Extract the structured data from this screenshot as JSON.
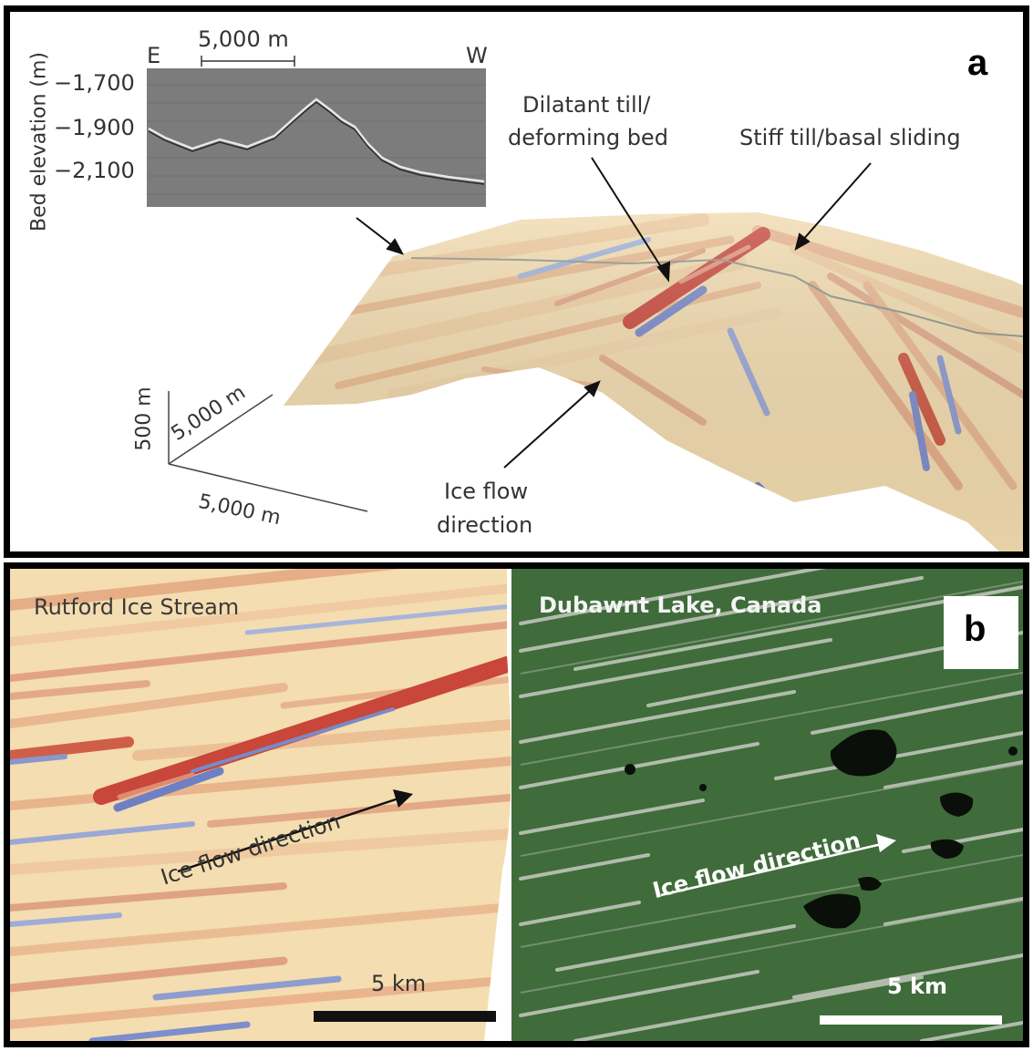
{
  "panel_a": {
    "letter": "a",
    "inset": {
      "ylabel": "Bed elevation (m)",
      "yticks": [
        "−1,700",
        "−1,900",
        "−2,100"
      ],
      "left_end": "E",
      "right_end": "W",
      "scale": "5,000 m"
    },
    "annotations": {
      "dilatant_1": "Dilatant till/",
      "dilatant_2": "deforming bed",
      "stiff": "Stiff till/basal sliding",
      "flow_1": "Ice flow",
      "flow_2": "direction"
    },
    "scale_axes": {
      "vertical": "500 m",
      "depth": "5,000 m",
      "horizontal": "5,000 m"
    },
    "colors": {
      "red": "#c8463a",
      "blue": "#7888c8",
      "cream": "#f4ddb0"
    }
  },
  "panel_b": {
    "letter": "b",
    "left_title": "Rutford Ice Stream",
    "right_title": "Dubawnt Lake, Canada",
    "left_flow": "Ice flow direction",
    "right_flow": "Ice flow direction",
    "left_scale": "5 km",
    "right_scale": "5 km",
    "colors": {
      "satellite_green": "#3f6c3a",
      "lake": "#0a0f0a"
    }
  }
}
